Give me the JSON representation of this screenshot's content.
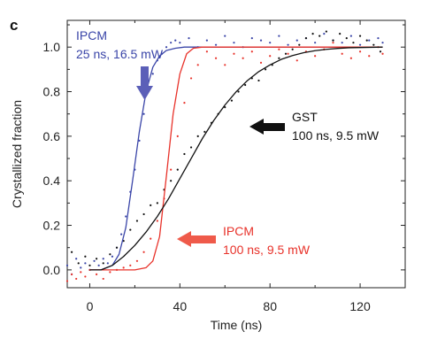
{
  "panel_label": "c",
  "chart_data": {
    "type": "line",
    "xlabel": "Time (ns)",
    "ylabel": "Crystallized fraction",
    "xlim": [
      -10,
      140
    ],
    "ylim": [
      -0.08,
      1.12
    ],
    "xticks": [
      0,
      40,
      80,
      120
    ],
    "xtick_labels": [
      "0",
      "40",
      "80",
      "120"
    ],
    "yticks": [
      0.0,
      0.2,
      0.4,
      0.6,
      0.8,
      1.0
    ],
    "ytick_labels": [
      "0.0",
      "0.2",
      "0.4",
      "0.6",
      "0.8",
      "1.0"
    ],
    "grid": false,
    "series": [
      {
        "name": "IPCM 25 ns, 16.5 mW",
        "color": "#3a45a8",
        "fit": {
          "x": [
            0,
            5,
            10,
            13,
            16,
            19,
            22,
            25,
            28,
            31,
            34,
            38,
            42,
            50,
            70,
            130
          ],
          "y": [
            0.0,
            0.0,
            0.02,
            0.07,
            0.19,
            0.4,
            0.62,
            0.8,
            0.91,
            0.96,
            0.985,
            0.995,
            1.0,
            1.0,
            1.0,
            1.0
          ]
        },
        "points": {
          "x": [
            -10,
            -8,
            -6,
            -4,
            -2,
            0,
            2,
            4,
            6,
            8,
            10,
            12,
            14,
            16,
            18,
            20,
            22,
            24,
            26,
            28,
            30,
            32,
            34,
            36,
            38,
            40,
            44,
            48,
            52,
            56,
            60,
            64,
            68,
            72,
            76,
            80,
            84,
            88,
            92,
            96,
            100,
            104,
            108,
            112,
            116,
            120,
            124,
            128,
            130
          ],
          "y": [
            0.02,
            -0.02,
            0.05,
            0.01,
            0.03,
            0.0,
            0.04,
            0.02,
            0.05,
            0.03,
            0.06,
            0.1,
            0.16,
            0.24,
            0.35,
            0.45,
            0.58,
            0.7,
            0.8,
            0.88,
            0.94,
            0.97,
            1.0,
            1.02,
            1.03,
            1.02,
            1.04,
            1.0,
            1.03,
            1.01,
            1.05,
            1.02,
            1.0,
            1.04,
            1.03,
            1.02,
            1.05,
            1.01,
            1.03,
            1.04,
            1.02,
            1.06,
            1.03,
            1.02,
            1.05,
            1.01,
            1.03,
            1.04,
            1.02
          ]
        }
      },
      {
        "name": "IPCM 100 ns, 9.5 mW",
        "color": "#e8322a",
        "fit": {
          "x": [
            0,
            20,
            25,
            28,
            31,
            34,
            37,
            40,
            43,
            46,
            50,
            60,
            130
          ],
          "y": [
            0.0,
            0.0,
            0.01,
            0.04,
            0.15,
            0.42,
            0.7,
            0.88,
            0.97,
            0.995,
            1.0,
            1.0,
            1.0
          ]
        },
        "points": {
          "x": [
            -10,
            -8,
            -6,
            -4,
            -2,
            0,
            3,
            6,
            9,
            12,
            15,
            18,
            21,
            24,
            27,
            30,
            33,
            36,
            39,
            42,
            45,
            48,
            52,
            56,
            60,
            64,
            68,
            72,
            76,
            80,
            84,
            88,
            92,
            96,
            100,
            104,
            108,
            112,
            116,
            120,
            124,
            128,
            130
          ],
          "y": [
            -0.05,
            -0.02,
            -0.04,
            -0.01,
            -0.03,
            0.0,
            -0.02,
            -0.04,
            -0.01,
            0.0,
            0.01,
            0.02,
            0.04,
            0.08,
            0.14,
            0.22,
            0.32,
            0.45,
            0.6,
            0.75,
            0.86,
            0.92,
            0.98,
            0.95,
            0.92,
            0.97,
            0.95,
            0.98,
            0.93,
            0.96,
            0.99,
            0.97,
            0.94,
            0.98,
            0.96,
            0.99,
            1.02,
            0.97,
            0.95,
            0.98,
            0.96,
            1.0,
            0.97
          ]
        }
      },
      {
        "name": "GST 100 ns, 9.5 mW",
        "color": "#111111",
        "fit": {
          "x": [
            0,
            5,
            10,
            15,
            20,
            25,
            30,
            35,
            40,
            45,
            50,
            55,
            60,
            65,
            70,
            75,
            80,
            85,
            90,
            95,
            100,
            105,
            110,
            115,
            120,
            125,
            130
          ],
          "y": [
            0.0,
            0.0,
            0.02,
            0.06,
            0.11,
            0.17,
            0.24,
            0.32,
            0.41,
            0.5,
            0.59,
            0.67,
            0.74,
            0.8,
            0.85,
            0.89,
            0.92,
            0.945,
            0.962,
            0.975,
            0.984,
            0.99,
            0.994,
            0.997,
            0.998,
            0.999,
            1.0
          ]
        },
        "points": {
          "x": [
            -8,
            -5,
            -2,
            0,
            3,
            6,
            9,
            12,
            15,
            18,
            21,
            24,
            27,
            30,
            33,
            36,
            39,
            42,
            45,
            48,
            51,
            54,
            57,
            60,
            63,
            66,
            69,
            72,
            75,
            78,
            81,
            84,
            87,
            90,
            93,
            96,
            99,
            102,
            105,
            108,
            111,
            114,
            117,
            120,
            123,
            126,
            129
          ],
          "y": [
            0.08,
            0.03,
            0.06,
            0.02,
            0.05,
            0.03,
            0.07,
            0.1,
            0.13,
            0.18,
            0.22,
            0.25,
            0.29,
            0.3,
            0.36,
            0.4,
            0.45,
            0.52,
            0.55,
            0.6,
            0.62,
            0.66,
            0.7,
            0.73,
            0.76,
            0.8,
            0.83,
            0.86,
            0.85,
            0.9,
            0.92,
            0.95,
            0.97,
            0.99,
            1.01,
            1.04,
            1.06,
            1.05,
            1.07,
            1.03,
            1.06,
            1.04,
            1.02,
            1.05,
            1.03,
            1.01,
            0.98
          ]
        }
      }
    ],
    "annotations": [
      {
        "id": "ipcm-fast",
        "lines": [
          "IPCM",
          "25 ns, 16.5 mW"
        ],
        "color": "#3a45a8",
        "arrow": "down"
      },
      {
        "id": "gst",
        "lines": [
          "GST",
          "100 ns, 9.5 mW"
        ],
        "color": "#111111",
        "arrow": "left"
      },
      {
        "id": "ipcm-slow",
        "lines": [
          "IPCM",
          "100 ns, 9.5 mW"
        ],
        "color": "#e8322a",
        "arrow": "left"
      }
    ]
  }
}
